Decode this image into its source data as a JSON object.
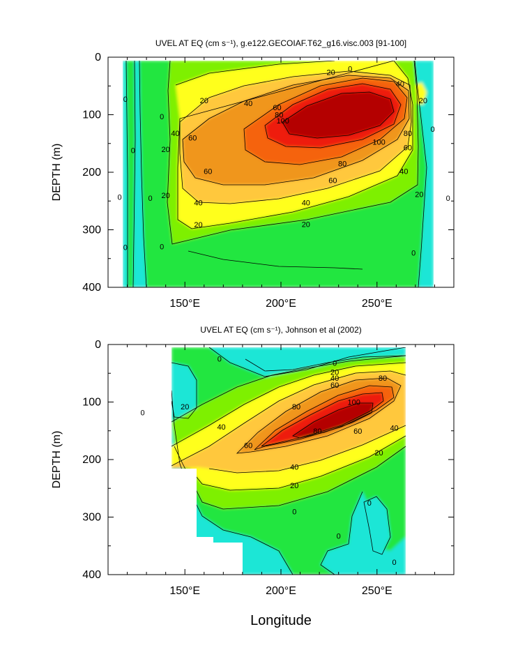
{
  "figure": {
    "xlabel": "Longitude",
    "palette": {
      "neg": "#1ae6d6",
      "c0": "#22e640",
      "c20": "#7ef000",
      "c40": "#ffff1a",
      "c60": "#ffc83c",
      "c80": "#f0961e",
      "c100": "#f5640a",
      "c120": "#ee1e10",
      "c140": "#b40000",
      "missing": "#ffffff",
      "line": "#000000"
    }
  },
  "chart_data": [
    {
      "type": "contour",
      "title": "UVEL AT EQ (cm s⁻¹), g.e122.GECOIAF.T62_g16.visc.003 [91-100]",
      "ylabel": "DEPTH (m)",
      "xlabel": "",
      "xlim": [
        110,
        290
      ],
      "ylim": [
        400,
        0
      ],
      "xticks": [
        150,
        200,
        250
      ],
      "xtick_labels": [
        "150°E",
        "200°E",
        "250°E"
      ],
      "yticks": [
        0,
        100,
        200,
        300,
        400
      ],
      "ytick_labels": [
        "0",
        "100",
        "200",
        "300",
        "400"
      ],
      "levels": [
        0,
        20,
        40,
        60,
        80,
        100,
        120,
        140
      ],
      "data_extent": [
        117,
        279
      ],
      "jet_core": {
        "lon": 222,
        "depth": 120,
        "max_speed": 140
      },
      "contour_labels": [
        {
          "text": "0",
          "lon": 236,
          "depth": 20
        },
        {
          "text": "20",
          "lon": 226,
          "depth": 26
        },
        {
          "text": "40",
          "lon": 262,
          "depth": 46
        },
        {
          "text": "20",
          "lon": 160,
          "depth": 75
        },
        {
          "text": "40",
          "lon": 183,
          "depth": 80
        },
        {
          "text": "60",
          "lon": 198,
          "depth": 87
        },
        {
          "text": "80",
          "lon": 199,
          "depth": 100
        },
        {
          "text": "100",
          "lon": 201,
          "depth": 110
        },
        {
          "text": "20",
          "lon": 274,
          "depth": 75
        },
        {
          "text": "0",
          "lon": 119,
          "depth": 73
        },
        {
          "text": "0",
          "lon": 138,
          "depth": 103
        },
        {
          "text": "40",
          "lon": 145,
          "depth": 132
        },
        {
          "text": "60",
          "lon": 154,
          "depth": 140
        },
        {
          "text": "20",
          "lon": 140,
          "depth": 160
        },
        {
          "text": "0",
          "lon": 123,
          "depth": 162
        },
        {
          "text": "0",
          "lon": 279,
          "depth": 125
        },
        {
          "text": "100",
          "lon": 251,
          "depth": 147
        },
        {
          "text": "80",
          "lon": 266,
          "depth": 132
        },
        {
          "text": "60",
          "lon": 266,
          "depth": 157
        },
        {
          "text": "80",
          "lon": 232,
          "depth": 185
        },
        {
          "text": "60",
          "lon": 162,
          "depth": 198
        },
        {
          "text": "60",
          "lon": 227,
          "depth": 214
        },
        {
          "text": "40",
          "lon": 264,
          "depth": 198
        },
        {
          "text": "20",
          "lon": 140,
          "depth": 240
        },
        {
          "text": "20",
          "lon": 272,
          "depth": 238
        },
        {
          "text": "0",
          "lon": 116,
          "depth": 243
        },
        {
          "text": "0",
          "lon": 132,
          "depth": 245
        },
        {
          "text": "0",
          "lon": 287,
          "depth": 245
        },
        {
          "text": "40",
          "lon": 157,
          "depth": 253
        },
        {
          "text": "40",
          "lon": 213,
          "depth": 253
        },
        {
          "text": "20",
          "lon": 157,
          "depth": 291
        },
        {
          "text": "20",
          "lon": 213,
          "depth": 290
        },
        {
          "text": "0",
          "lon": 119,
          "depth": 330
        },
        {
          "text": "0",
          "lon": 138,
          "depth": 329
        },
        {
          "text": "0",
          "lon": 269,
          "depth": 340
        }
      ]
    },
    {
      "type": "contour",
      "title": "UVEL AT EQ (cm s⁻¹), Johnson et al (2002)",
      "ylabel": "DEPTH (m)",
      "xlabel": "Longitude",
      "xlim": [
        110,
        290
      ],
      "ylim": [
        400,
        0
      ],
      "xticks": [
        150,
        200,
        250
      ],
      "xtick_labels": [
        "150°E",
        "200°E",
        "250°E"
      ],
      "yticks": [
        0,
        100,
        200,
        300,
        400
      ],
      "ytick_labels": [
        "0",
        "100",
        "200",
        "300",
        "400"
      ],
      "levels": [
        0,
        20,
        40,
        60,
        80,
        100,
        120
      ],
      "data_extent": [
        143,
        265
      ],
      "jet_core": {
        "lon": 230,
        "depth": 105,
        "max_speed": 120
      },
      "contour_labels": [
        {
          "text": "0",
          "lon": 168,
          "depth": 25
        },
        {
          "text": "0",
          "lon": 228,
          "depth": 32
        },
        {
          "text": "20",
          "lon": 228,
          "depth": 48
        },
        {
          "text": "40",
          "lon": 228,
          "depth": 58
        },
        {
          "text": "60",
          "lon": 228,
          "depth": 70
        },
        {
          "text": "80",
          "lon": 253,
          "depth": 58
        },
        {
          "text": "0",
          "lon": 128,
          "depth": 118
        },
        {
          "text": "20",
          "lon": 150,
          "depth": 108
        },
        {
          "text": "80",
          "lon": 208,
          "depth": 108
        },
        {
          "text": "100",
          "lon": 238,
          "depth": 100
        },
        {
          "text": "40",
          "lon": 169,
          "depth": 143
        },
        {
          "text": "80",
          "lon": 219,
          "depth": 150
        },
        {
          "text": "60",
          "lon": 240,
          "depth": 150
        },
        {
          "text": "40",
          "lon": 259,
          "depth": 145
        },
        {
          "text": "60",
          "lon": 183,
          "depth": 175
        },
        {
          "text": "20",
          "lon": 251,
          "depth": 188
        },
        {
          "text": "40",
          "lon": 207,
          "depth": 213
        },
        {
          "text": "20",
          "lon": 207,
          "depth": 245
        },
        {
          "text": "0",
          "lon": 207,
          "depth": 290
        },
        {
          "text": "0",
          "lon": 246,
          "depth": 275
        },
        {
          "text": "0",
          "lon": 230,
          "depth": 333
        },
        {
          "text": "0",
          "lon": 259,
          "depth": 378
        }
      ]
    }
  ]
}
